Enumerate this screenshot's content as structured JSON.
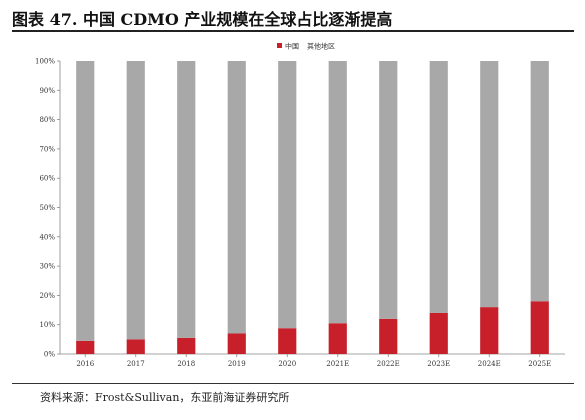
{
  "figure": {
    "title": "图表 47. 中国 CDMO 产业规模在全球占比逐渐提高",
    "source": "资料来源：Frost&Sullivan，东亚前海证券研究所"
  },
  "colors": {
    "china": "#c8202b",
    "other": "#a8a8a8"
  },
  "chart_data": {
    "type": "bar",
    "stacked": true,
    "categories": [
      "2016",
      "2017",
      "2018",
      "2019",
      "2020",
      "2021E",
      "2022E",
      "2023E",
      "2024E",
      "2025E"
    ],
    "series": [
      {
        "name": "中国",
        "values": [
          4.5,
          5,
          5.5,
          7,
          8.8,
          10.5,
          12,
          14,
          16,
          18
        ]
      },
      {
        "name": "其他地区",
        "values": [
          95.5,
          95,
          94.5,
          93,
          91.2,
          89.5,
          88,
          86,
          84,
          82
        ]
      }
    ],
    "yticks": [
      "0%",
      "10%",
      "20%",
      "30%",
      "40%",
      "50%",
      "60%",
      "70%",
      "80%",
      "90%",
      "100%"
    ],
    "ylim": [
      0,
      100
    ],
    "legend_position": "top-center",
    "grid": false
  }
}
